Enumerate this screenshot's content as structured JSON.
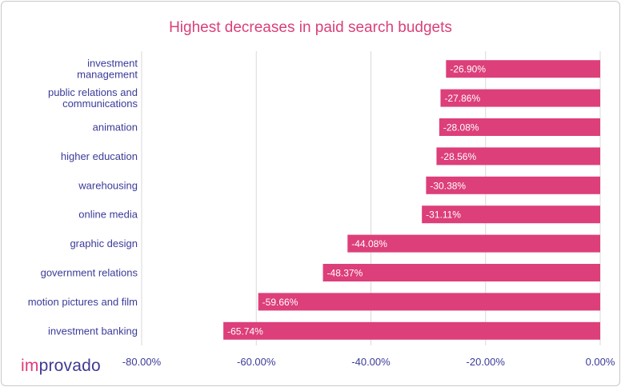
{
  "chart_data": {
    "type": "bar",
    "orientation": "horizontal",
    "title": "Highest decreases in paid search budgets",
    "categories": [
      "investment\nmanagement",
      "public relations and\ncommunications",
      "animation",
      "higher education",
      "warehousing",
      "online media",
      "graphic design",
      "government relations",
      "motion pictures and film",
      "investment banking"
    ],
    "values": [
      -26.9,
      -27.86,
      -28.08,
      -28.56,
      -30.38,
      -31.11,
      -44.08,
      -48.37,
      -59.66,
      -65.74
    ],
    "data_labels": [
      "-26.90%",
      "-27.86%",
      "-28.08%",
      "-28.56%",
      "-30.38%",
      "-31.11%",
      "-44.08%",
      "-48.37%",
      "-59.66%",
      "-65.74%"
    ],
    "xlim": [
      -80,
      0
    ],
    "xticks": [
      -80,
      -60,
      -40,
      -20,
      0
    ],
    "xtick_labels": [
      "-80.00%",
      "-60.00%",
      "-40.00%",
      "-20.00%",
      "0.00%"
    ],
    "grid": true,
    "legend": "none",
    "bar_color": "#dc3f79",
    "label_color": "#3b3b9a"
  },
  "branding": {
    "logo_part1": "im",
    "logo_part2": "provado"
  }
}
